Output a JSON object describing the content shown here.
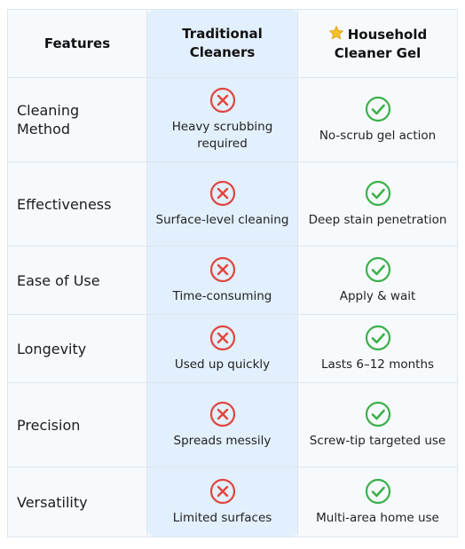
{
  "header": [
    "Features",
    "Traditional Cleaners",
    "Household Cleaner Gel"
  ],
  "rows": [
    [
      "Cleaning Method",
      "Heavy scrubbing required",
      "No-scrub gel action"
    ],
    [
      "Effectiveness",
      "Surface-level cleaning",
      "Deep stain penetration"
    ],
    [
      "Ease of Use",
      "Time-consuming",
      "Apply & wait"
    ],
    [
      "Longevity",
      "Used up quickly",
      "Lasts 6–12 months"
    ],
    [
      "Precision",
      "Spreads messily",
      "Screw-tip targeted use"
    ],
    [
      "Versatility",
      "Limited surfaces",
      "Multi-area home use"
    ]
  ]
}
